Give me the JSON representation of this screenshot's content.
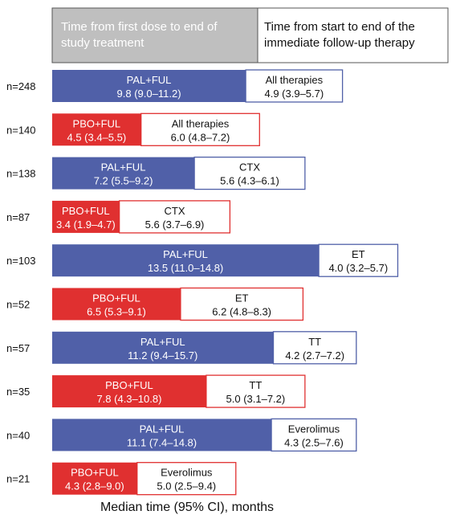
{
  "colors": {
    "pal_fill": "#5060a8",
    "pbo_fill": "#e03030",
    "legend_grey": "#bfbfbf",
    "followup_fill": "#ffffff",
    "text_dark": "#111111",
    "text_light": "#ffffff"
  },
  "legend": {
    "study_treatment": [
      "Time from first dose to end of",
      "study treatment"
    ],
    "follow_up": [
      "Time from start to end of the",
      "immediate follow-up therapy"
    ]
  },
  "chart_data": {
    "type": "bar",
    "orientation": "horizontal-stacked",
    "xlabel": "Median time (95% CI), months",
    "rows": [
      {
        "n": "n=248",
        "arm": "PAL+FUL",
        "arm_value": 9.8,
        "arm_ci": "9.8 (9.0–11.2)",
        "followup": "All therapies",
        "followup_value": 4.9,
        "followup_ci": "4.9 (3.9–5.7)"
      },
      {
        "n": "n=140",
        "arm": "PBO+FUL",
        "arm_value": 4.5,
        "arm_ci": "4.5 (3.4–5.5)",
        "followup": "All therapies",
        "followup_value": 6.0,
        "followup_ci": "6.0 (4.8–7.2)"
      },
      {
        "n": "n=138",
        "arm": "PAL+FUL",
        "arm_value": 7.2,
        "arm_ci": "7.2 (5.5–9.2)",
        "followup": "CTX",
        "followup_value": 5.6,
        "followup_ci": "5.6 (4.3–6.1)"
      },
      {
        "n": "n=87",
        "arm": "PBO+FUL",
        "arm_value": 3.4,
        "arm_ci": "3.4 (1.9–4.7)",
        "followup": "CTX",
        "followup_value": 5.6,
        "followup_ci": "5.6 (3.7–6.9)"
      },
      {
        "n": "n=103",
        "arm": "PAL+FUL",
        "arm_value": 13.5,
        "arm_ci": "13.5 (11.0–14.8)",
        "followup": "ET",
        "followup_value": 4.0,
        "followup_ci": "4.0 (3.2–5.7)"
      },
      {
        "n": "n=52",
        "arm": "PBO+FUL",
        "arm_value": 6.5,
        "arm_ci": "6.5 (5.3–9.1)",
        "followup": "ET",
        "followup_value": 6.2,
        "followup_ci": "6.2 (4.8–8.3)"
      },
      {
        "n": "n=57",
        "arm": "PAL+FUL",
        "arm_value": 11.2,
        "arm_ci": "11.2 (9.4–15.7)",
        "followup": "TT",
        "followup_value": 4.2,
        "followup_ci": "4.2 (2.7–7.2)"
      },
      {
        "n": "n=35",
        "arm": "PBO+FUL",
        "arm_value": 7.8,
        "arm_ci": "7.8 (4.3–10.8)",
        "followup": "TT",
        "followup_value": 5.0,
        "followup_ci": "5.0 (3.1–7.2)"
      },
      {
        "n": "n=40",
        "arm": "PAL+FUL",
        "arm_value": 11.1,
        "arm_ci": "11.1 (7.4–14.8)",
        "followup": "Everolimus",
        "followup_value": 4.3,
        "followup_ci": "4.3 (2.5–7.6)"
      },
      {
        "n": "n=21",
        "arm": "PBO+FUL",
        "arm_value": 4.3,
        "arm_ci": "4.3 (2.8–9.0)",
        "followup": "Everolimus",
        "followup_value": 5.0,
        "followup_ci": "5.0 (2.5–9.4)"
      }
    ]
  }
}
